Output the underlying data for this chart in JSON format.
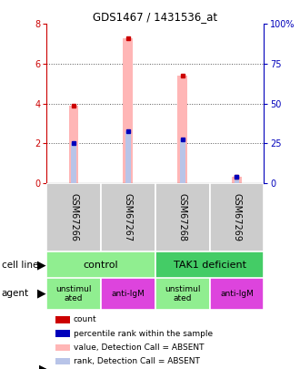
{
  "title": "GDS1467 / 1431536_at",
  "samples": [
    "GSM67266",
    "GSM67267",
    "GSM67268",
    "GSM67269"
  ],
  "bar_values_absent": [
    3.9,
    7.3,
    5.4,
    0.35
  ],
  "rank_values_absent": [
    2.0,
    2.6,
    2.2,
    0.35
  ],
  "count_values": [
    3.9,
    7.3,
    5.4,
    0.35
  ],
  "rank_values": [
    2.0,
    2.6,
    2.2,
    0.35
  ],
  "ylim_left": [
    0,
    8
  ],
  "ylim_right": [
    0,
    100
  ],
  "yticks_left": [
    0,
    2,
    4,
    6,
    8
  ],
  "yticks_right": [
    0,
    25,
    50,
    75,
    100
  ],
  "ytick_labels_right": [
    "0",
    "25",
    "50",
    "75",
    "100%"
  ],
  "color_bar_absent": "#FFB6B6",
  "color_rank_absent": "#B8C4E8",
  "color_count": "#CC0000",
  "color_rank": "#0000BB",
  "left_axis_color": "#CC0000",
  "right_axis_color": "#0000BB",
  "bg_color": "#FFFFFF",
  "grid_color": "#555555",
  "cell_line_colors": [
    "#90EE90",
    "#44CC66"
  ],
  "agent_colors_list": [
    "#90EE90",
    "#DD44DD",
    "#90EE90",
    "#DD44DD"
  ],
  "agent_labels": [
    "unstimul\nated",
    "anti-IgM",
    "unstimul\nated",
    "anti-IgM"
  ],
  "legend_colors": [
    "#CC0000",
    "#0000BB",
    "#FFB6B6",
    "#B8C4E8"
  ],
  "legend_labels": [
    "count",
    "percentile rank within the sample",
    "value, Detection Call = ABSENT",
    "rank, Detection Call = ABSENT"
  ]
}
